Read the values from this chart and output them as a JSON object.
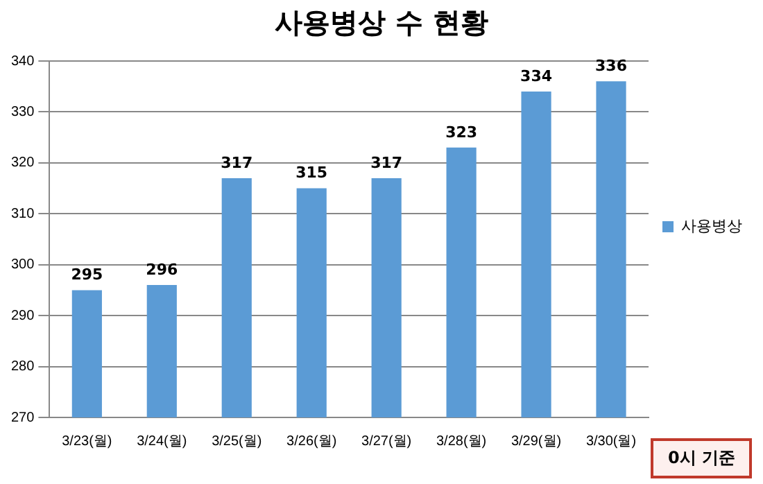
{
  "chart_data": {
    "type": "bar",
    "title": "사용병상 수 현황",
    "categories": [
      "3/23(월)",
      "3/24(월)",
      "3/25(월)",
      "3/26(월)",
      "3/27(월)",
      "3/28(월)",
      "3/29(월)",
      "3/30(월)"
    ],
    "series": [
      {
        "name": "사용병상",
        "color": "#5b9bd5",
        "values": [
          295,
          296,
          317,
          315,
          317,
          323,
          334,
          336
        ]
      }
    ],
    "ylim": [
      270,
      340
    ],
    "yticks": [
      270,
      280,
      290,
      300,
      310,
      320,
      330,
      340
    ],
    "grid": "y",
    "legend": "right",
    "data_labels": true,
    "annotations": [
      "0시 기준"
    ]
  }
}
